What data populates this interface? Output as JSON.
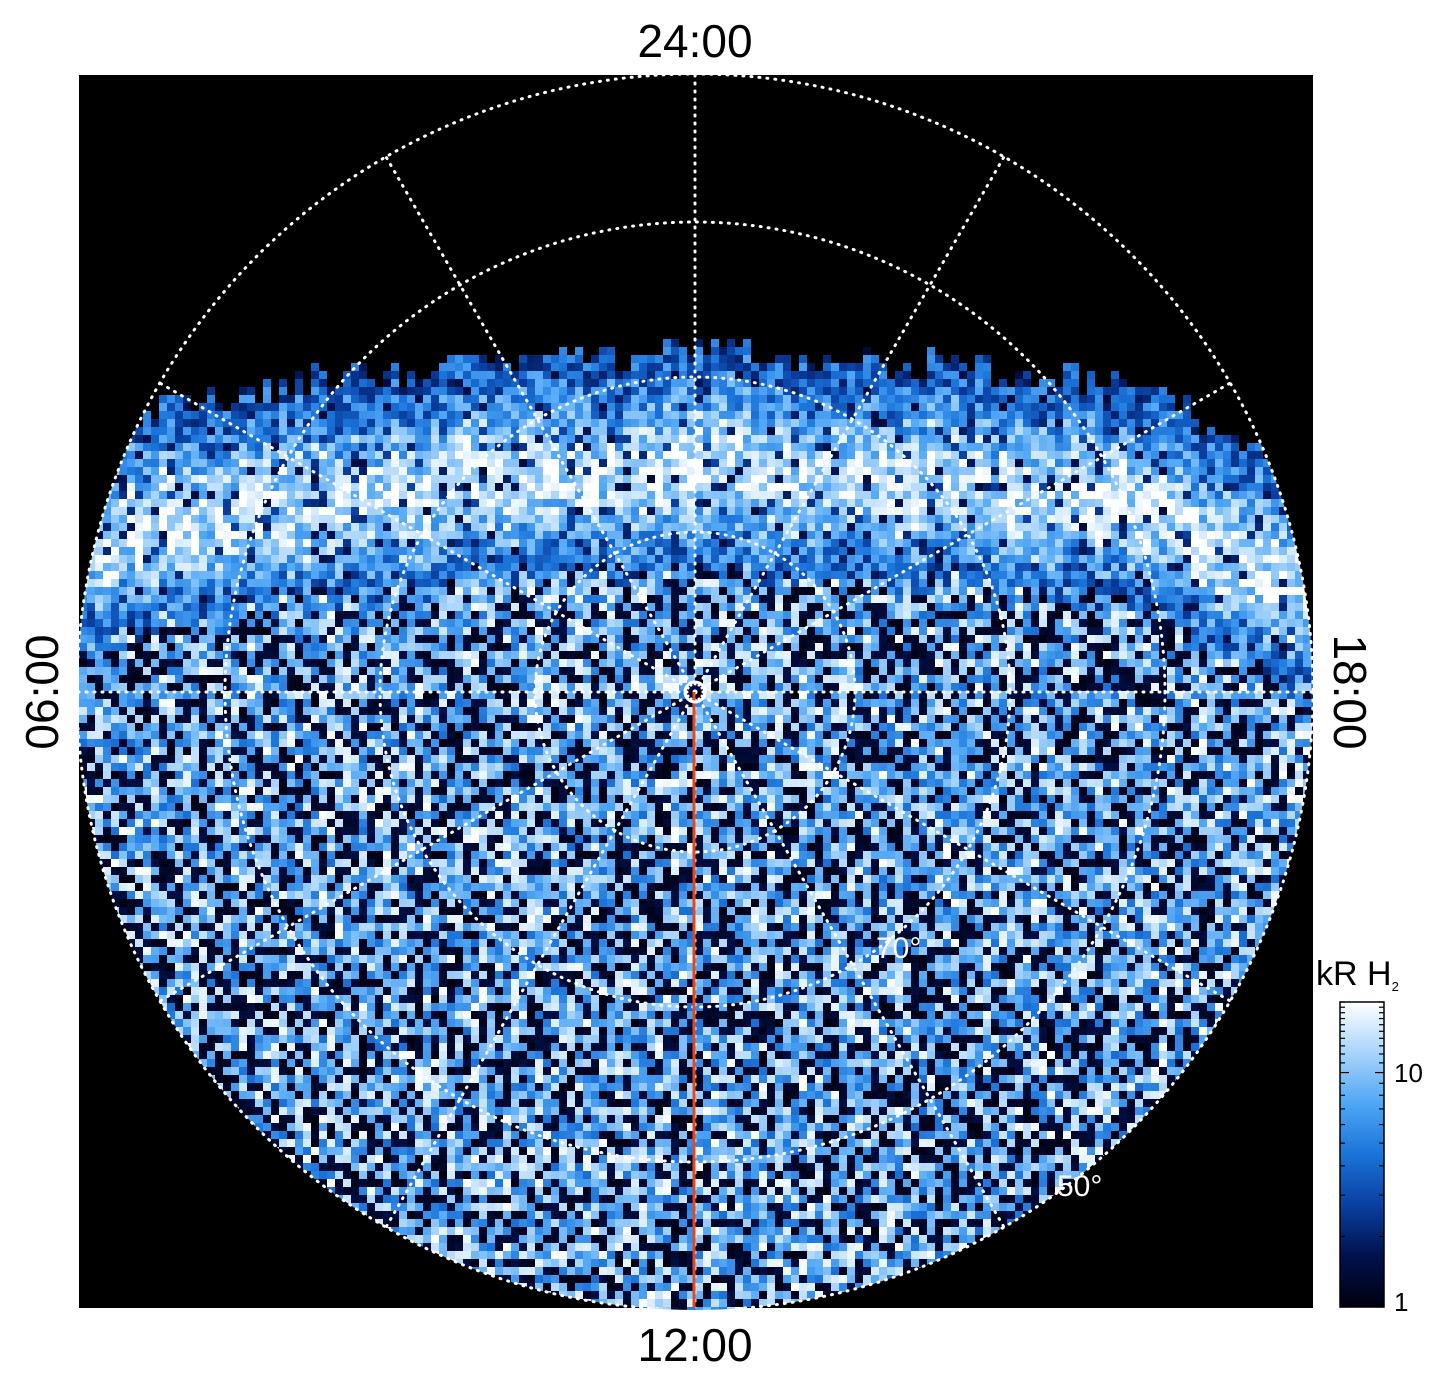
{
  "chart_data": {
    "type": "heatmap",
    "projection": "polar",
    "local_time_labels": {
      "top": "24:00",
      "bottom": "12:00",
      "left": "06:00",
      "right": "18:00"
    },
    "latitude_labels": [
      "70°",
      "50°"
    ],
    "meridian_marker_local_time": "12:00",
    "colorbar": {
      "title": "kR H",
      "title_subscript": "2",
      "scale": "log",
      "range": [
        1,
        20
      ],
      "ticks": [
        {
          "value": 1,
          "label": "1"
        },
        {
          "value": 10,
          "label": "10"
        }
      ],
      "colors": [
        "#000010",
        "#00114d",
        "#0a3fa0",
        "#1a73d9",
        "#4fa6f5",
        "#a8d4fb",
        "#ffffff"
      ]
    },
    "grid": true,
    "grid_style": "dotted white",
    "background": "#000000",
    "marker_color": "#e4471a"
  }
}
